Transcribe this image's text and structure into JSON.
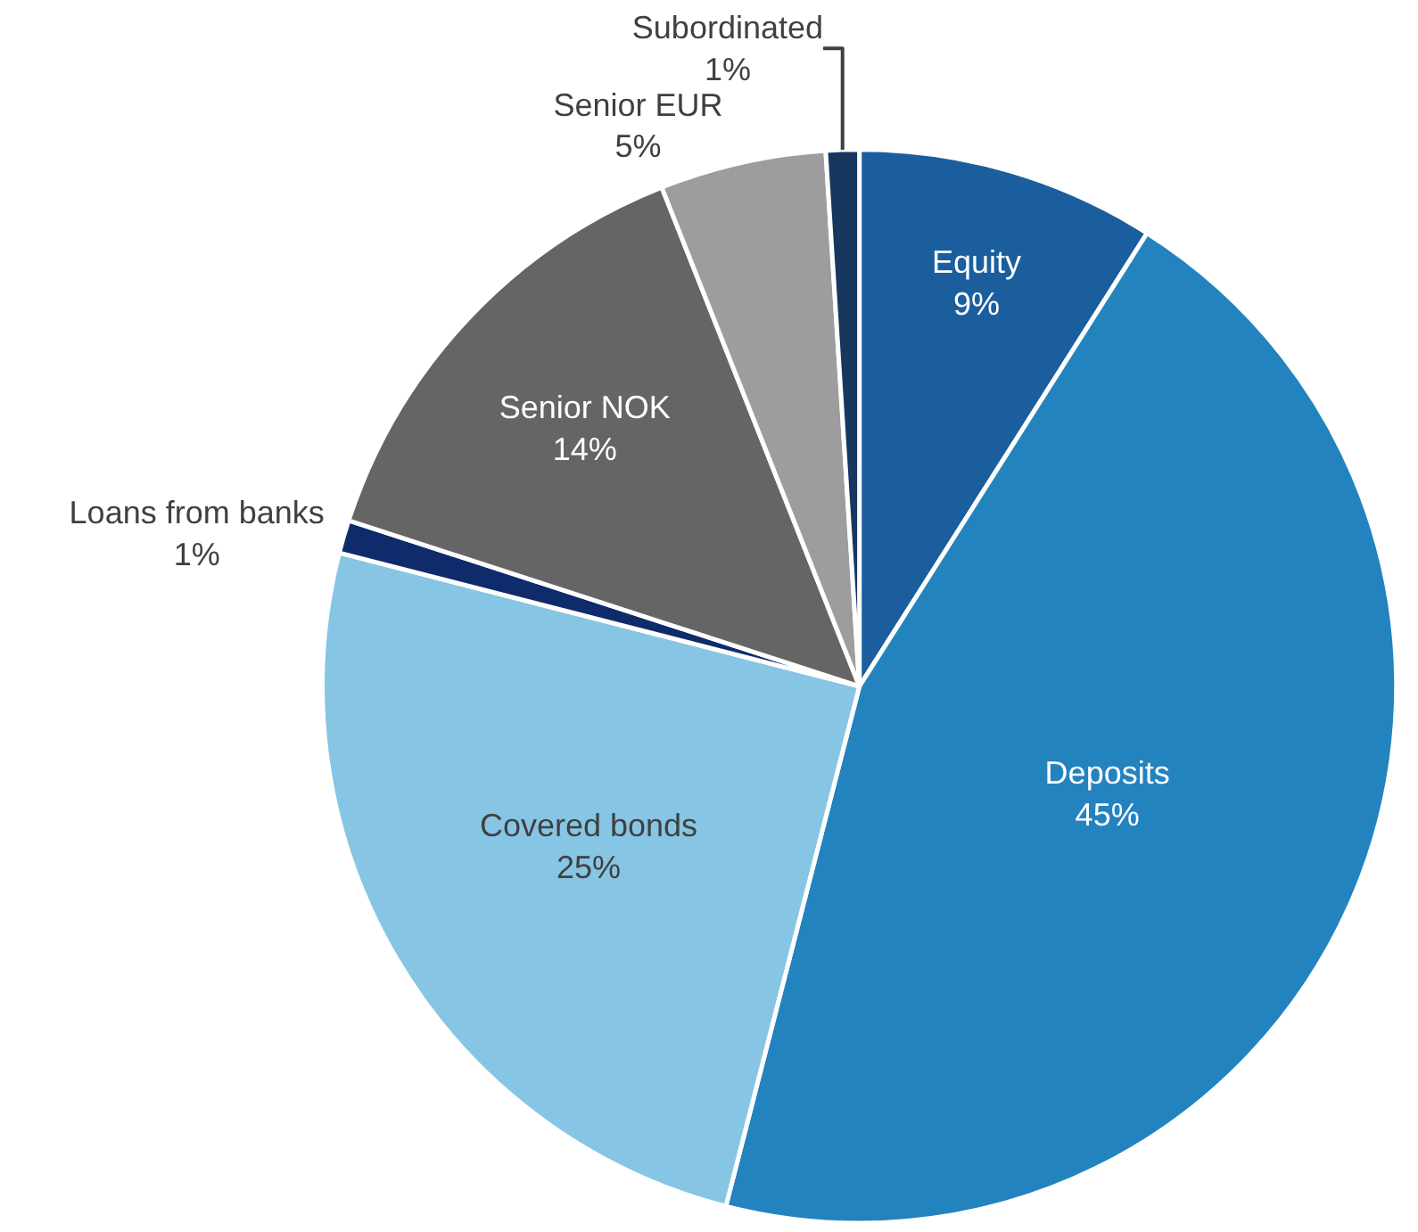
{
  "chart_data": {
    "type": "pie",
    "categories": [
      "Equity",
      "Deposits",
      "Covered bonds",
      "Loans from banks",
      "Senior NOK",
      "Senior EUR",
      "Subordinated"
    ],
    "values": [
      9,
      45,
      25,
      1,
      14,
      5,
      1
    ],
    "value_labels": [
      "9%",
      "45%",
      "25%",
      "1%",
      "14%",
      "5%",
      "1%"
    ],
    "colors": [
      "#1b5e9e",
      "#2383bf",
      "#87c5e4",
      "#0f2b6b",
      "#656565",
      "#9d9d9d",
      "#17375e"
    ],
    "legend": false
  }
}
